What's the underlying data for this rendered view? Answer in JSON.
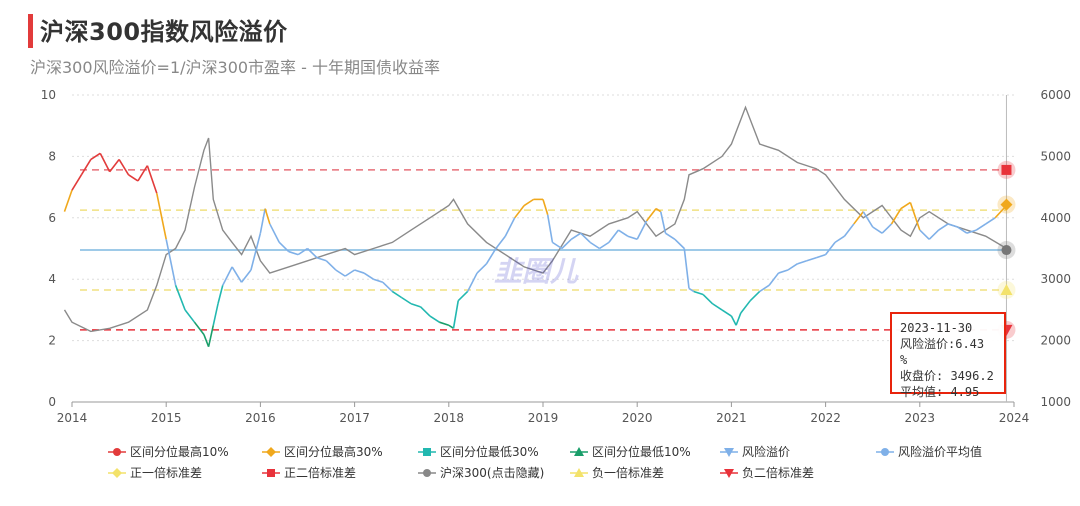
{
  "title": "沪深300指数风险溢价",
  "subtitle": "沪深300风险溢价=1/沪深300市盈率 - 十年期国债收益率",
  "watermark": "韭圈儿",
  "tooltip": {
    "date": "2023-11-30",
    "premium": "风险溢价:6.43 %",
    "close": "收盘价: 3496.2",
    "avg": "平均值: 4.95"
  },
  "legend": [
    {
      "label": "区间分位最高10%",
      "color": "#e23b3b",
      "shape": "circle"
    },
    {
      "label": "区间分位最高30%",
      "color": "#f0a81c",
      "shape": "diamond"
    },
    {
      "label": "区间分位最低30%",
      "color": "#22b8b0",
      "shape": "square"
    },
    {
      "label": "区间分位最低10%",
      "color": "#1a9e6a",
      "shape": "triangle"
    },
    {
      "label": "风险溢价",
      "color": "#7fb0e8",
      "shape": "tri-down"
    },
    {
      "label": "风险溢价平均值",
      "color": "#7fb0e8",
      "shape": "circle"
    },
    {
      "label": "正一倍标准差",
      "color": "#f3e26a",
      "shape": "diamond"
    },
    {
      "label": "正二倍标准差",
      "color": "#e8323a",
      "shape": "square"
    },
    {
      "label": "沪深300(点击隐藏)",
      "color": "#888888",
      "shape": "circle"
    },
    {
      "label": "负一倍标准差",
      "color": "#f3e26a",
      "shape": "triangle"
    },
    {
      "label": "负二倍标准差",
      "color": "#e8323a",
      "shape": "tri-down"
    }
  ],
  "chart_data": {
    "type": "line",
    "x_ticks": [
      "2014",
      "2015",
      "2016",
      "2017",
      "2018",
      "2019",
      "2020",
      "2021",
      "2022",
      "2023",
      "2024"
    ],
    "y_left_ticks": [
      "0",
      "2",
      "4",
      "6",
      "8",
      "10"
    ],
    "y_right_ticks": [
      "1000",
      "2000",
      "3000",
      "4000",
      "5000",
      "6000"
    ],
    "ylim_left": [
      0,
      10
    ],
    "ylim_right": [
      1000,
      6000
    ],
    "xlim": [
      2014.0,
      2024.0
    ],
    "reference_lines": {
      "mean": 4.95,
      "plus1_std": 6.25,
      "plus2_std": 7.56,
      "minus1_std": 3.65,
      "minus2_std": 2.35
    },
    "series": [
      {
        "name": "风险溢价",
        "axis": "left",
        "x": [
          2013.92,
          2014.0,
          2014.1,
          2014.2,
          2014.3,
          2014.4,
          2014.5,
          2014.6,
          2014.7,
          2014.8,
          2014.9,
          2015.0,
          2015.1,
          2015.2,
          2015.3,
          2015.4,
          2015.45,
          2015.5,
          2015.55,
          2015.6,
          2015.7,
          2015.8,
          2015.9,
          2016.0,
          2016.05,
          2016.1,
          2016.2,
          2016.3,
          2016.4,
          2016.5,
          2016.6,
          2016.7,
          2016.8,
          2016.9,
          2017.0,
          2017.1,
          2017.2,
          2017.3,
          2017.4,
          2017.5,
          2017.6,
          2017.7,
          2017.8,
          2017.9,
          2018.0,
          2018.05,
          2018.1,
          2018.2,
          2018.3,
          2018.4,
          2018.5,
          2018.6,
          2018.7,
          2018.8,
          2018.9,
          2019.0,
          2019.05,
          2019.1,
          2019.2,
          2019.3,
          2019.4,
          2019.5,
          2019.6,
          2019.7,
          2019.8,
          2019.9,
          2020.0,
          2020.1,
          2020.2,
          2020.25,
          2020.3,
          2020.4,
          2020.5,
          2020.55,
          2020.6,
          2020.7,
          2020.8,
          2020.9,
          2021.0,
          2021.05,
          2021.1,
          2021.2,
          2021.3,
          2021.4,
          2021.5,
          2021.6,
          2021.7,
          2021.8,
          2021.9,
          2022.0,
          2022.1,
          2022.2,
          2022.3,
          2022.4,
          2022.5,
          2022.6,
          2022.7,
          2022.8,
          2022.9,
          2023.0,
          2023.1,
          2023.2,
          2023.3,
          2023.4,
          2023.5,
          2023.6,
          2023.7,
          2023.8,
          2023.92
        ],
        "values": [
          6.2,
          6.9,
          7.4,
          7.9,
          8.1,
          7.5,
          7.9,
          7.4,
          7.2,
          7.7,
          6.8,
          5.3,
          3.8,
          3.0,
          2.6,
          2.2,
          1.8,
          2.5,
          3.2,
          3.8,
          4.4,
          3.9,
          4.3,
          5.5,
          6.3,
          5.8,
          5.2,
          4.9,
          4.8,
          5.0,
          4.7,
          4.6,
          4.3,
          4.1,
          4.3,
          4.2,
          4.0,
          3.9,
          3.6,
          3.4,
          3.2,
          3.1,
          2.8,
          2.6,
          2.5,
          2.4,
          3.3,
          3.6,
          4.2,
          4.5,
          5.0,
          5.4,
          6.0,
          6.4,
          6.6,
          6.6,
          6.1,
          5.2,
          5.0,
          5.3,
          5.5,
          5.2,
          5.0,
          5.2,
          5.6,
          5.4,
          5.3,
          5.9,
          6.3,
          6.2,
          5.5,
          5.3,
          5.0,
          3.7,
          3.6,
          3.5,
          3.2,
          3.0,
          2.8,
          2.5,
          2.9,
          3.3,
          3.6,
          3.8,
          4.2,
          4.3,
          4.5,
          4.6,
          4.7,
          4.8,
          5.2,
          5.4,
          5.8,
          6.2,
          5.7,
          5.5,
          5.8,
          6.3,
          6.5,
          5.6,
          5.3,
          5.6,
          5.8,
          5.7,
          5.5,
          5.6,
          5.8,
          6.0,
          6.4
        ]
      },
      {
        "name": "沪深300(点击隐藏)",
        "axis": "right",
        "x": [
          2013.92,
          2014.0,
          2014.2,
          2014.4,
          2014.6,
          2014.8,
          2014.9,
          2015.0,
          2015.1,
          2015.2,
          2015.3,
          2015.4,
          2015.45,
          2015.5,
          2015.6,
          2015.7,
          2015.8,
          2015.9,
          2016.0,
          2016.1,
          2016.3,
          2016.5,
          2016.7,
          2016.9,
          2017.0,
          2017.2,
          2017.4,
          2017.6,
          2017.8,
          2018.0,
          2018.05,
          2018.2,
          2018.4,
          2018.6,
          2018.8,
          2019.0,
          2019.1,
          2019.3,
          2019.5,
          2019.7,
          2019.9,
          2020.0,
          2020.2,
          2020.4,
          2020.5,
          2020.55,
          2020.7,
          2020.9,
          2021.0,
          2021.1,
          2021.15,
          2021.3,
          2021.5,
          2021.7,
          2021.9,
          2022.0,
          2022.2,
          2022.4,
          2022.6,
          2022.8,
          2022.9,
          2023.0,
          2023.1,
          2023.3,
          2023.5,
          2023.7,
          2023.92
        ],
        "values": [
          2500,
          2300,
          2150,
          2200,
          2300,
          2500,
          2900,
          3400,
          3500,
          3800,
          4500,
          5100,
          5300,
          4300,
          3800,
          3600,
          3400,
          3700,
          3300,
          3100,
          3200,
          3300,
          3400,
          3500,
          3400,
          3500,
          3600,
          3800,
          4000,
          4200,
          4300,
          3900,
          3600,
          3400,
          3200,
          3100,
          3300,
          3800,
          3700,
          3900,
          4000,
          4100,
          3700,
          3900,
          4300,
          4700,
          4800,
          5000,
          5200,
          5600,
          5800,
          5200,
          5100,
          4900,
          4800,
          4700,
          4300,
          4000,
          4200,
          3800,
          3700,
          4000,
          4100,
          3900,
          3800,
          3700,
          3500
        ]
      }
    ]
  }
}
